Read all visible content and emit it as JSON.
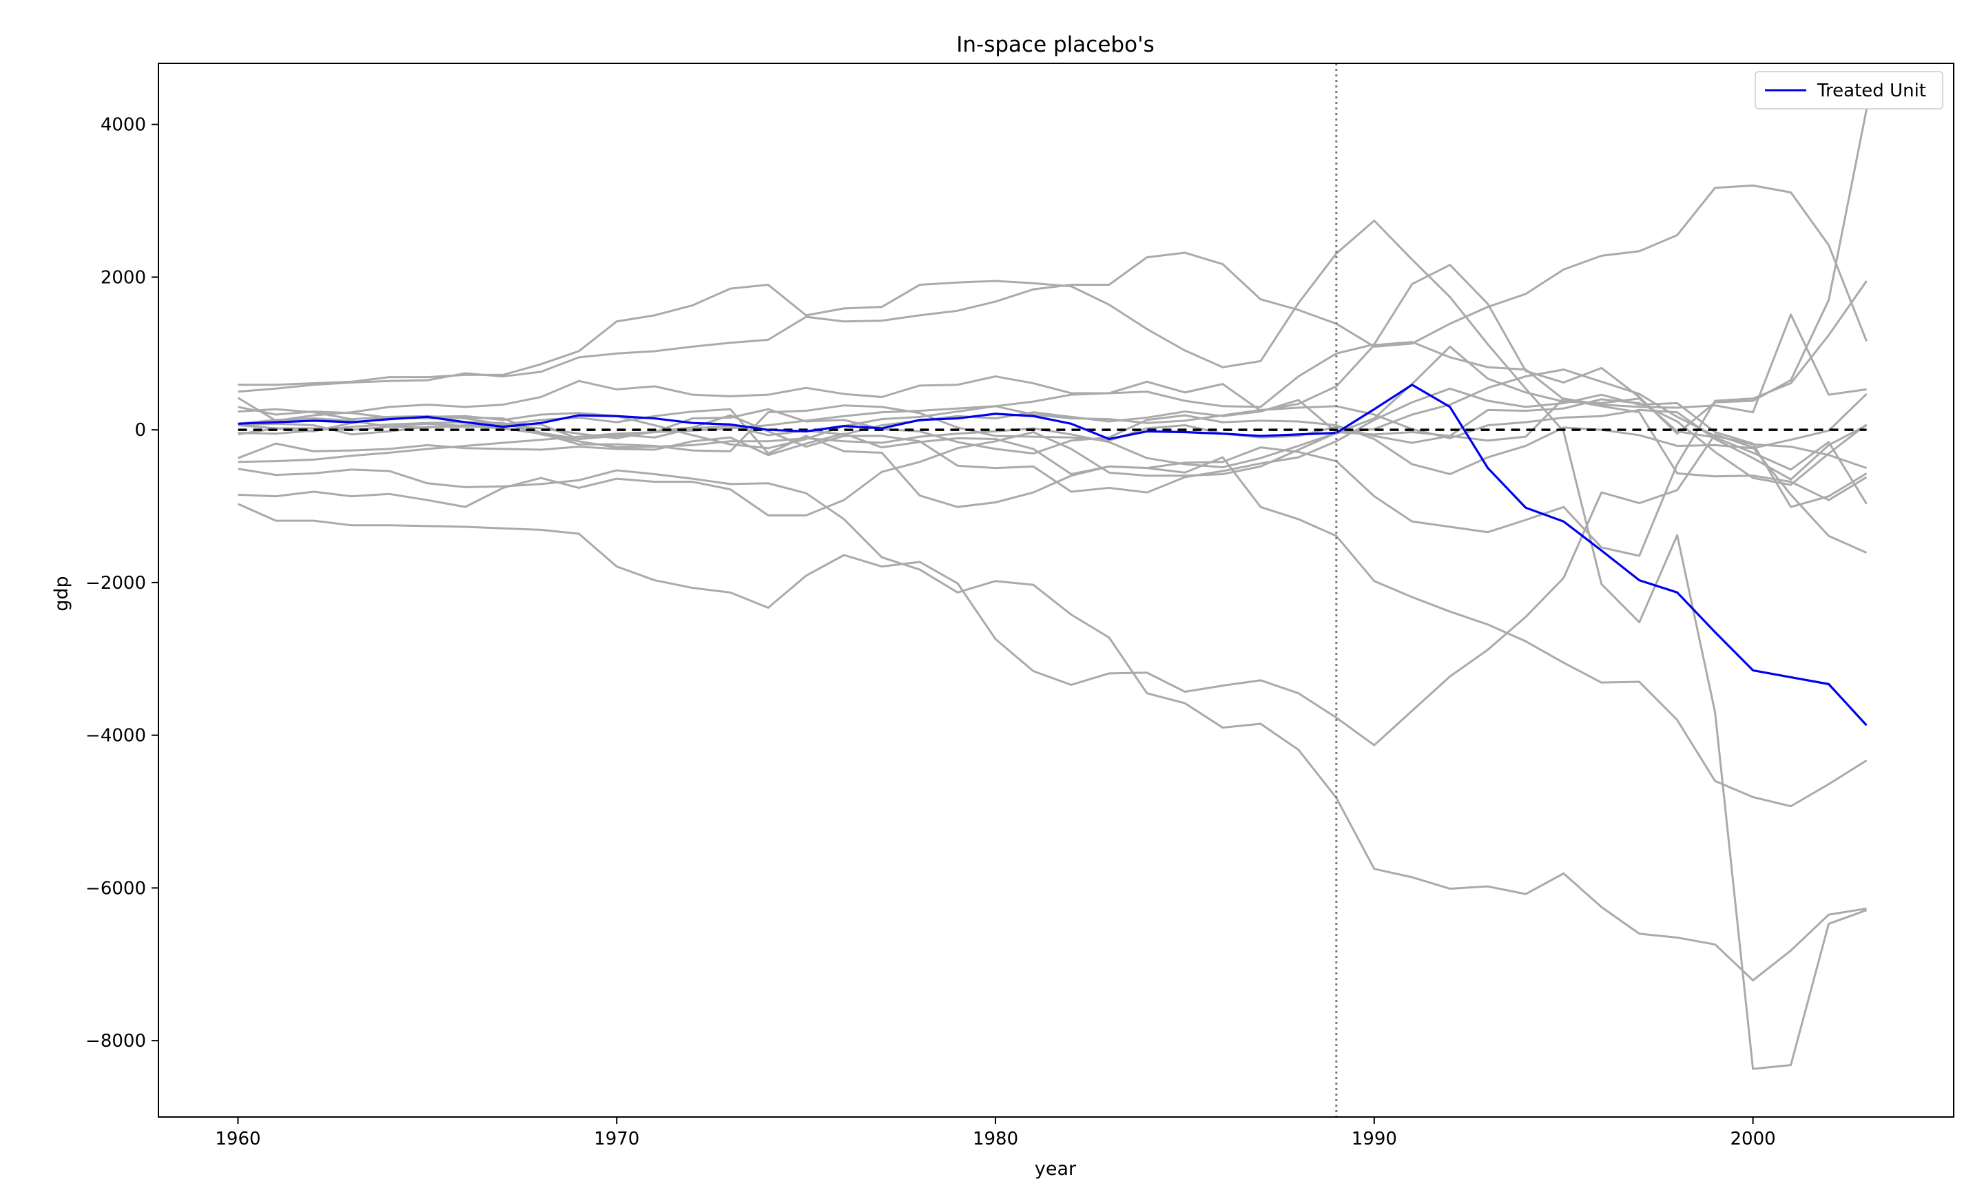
{
  "chart_data": {
    "type": "line",
    "title": "In-space placebo's",
    "xlabel": "year",
    "ylabel": "gdp",
    "xlim": [
      1957.9,
      2005.3
    ],
    "ylim": [
      -9000,
      4800
    ],
    "x_ticks": [
      1960,
      1970,
      1980,
      1990,
      2000
    ],
    "y_ticks": [
      4000,
      2000,
      0,
      -2000,
      -4000,
      -6000,
      -8000
    ],
    "x_tick_labels": [
      "1960",
      "1970",
      "1980",
      "1990",
      "2000"
    ],
    "y_tick_labels": [
      "4000",
      "2000",
      "0",
      "−2000",
      "−4000",
      "−6000",
      "−8000"
    ],
    "grid": false,
    "legend_position": "top-right",
    "treatment_year": 1989,
    "zero_line": 0,
    "colors": {
      "placebo": "#aaaaaa",
      "treated": "#0000ee",
      "zero": "#000000",
      "vline": "#777777"
    },
    "x": [
      1960,
      1961,
      1962,
      1963,
      1964,
      1965,
      1966,
      1967,
      1968,
      1969,
      1970,
      1971,
      1972,
      1973,
      1974,
      1975,
      1976,
      1977,
      1978,
      1979,
      1980,
      1981,
      1982,
      1983,
      1984,
      1985,
      1986,
      1987,
      1988,
      1989,
      1990,
      1991,
      1992,
      1993,
      1994,
      1995,
      1996,
      1997,
      1998,
      1999,
      2000,
      2001,
      2002,
      2003
    ],
    "series": [
      {
        "name": "Treated Unit",
        "role": "treated",
        "values": [
          80,
          100,
          120,
          100,
          140,
          170,
          100,
          40,
          90,
          190,
          180,
          150,
          90,
          70,
          0,
          -20,
          50,
          20,
          130,
          150,
          210,
          180,
          80,
          -120,
          -20,
          -30,
          -50,
          -80,
          -60,
          -40,
          270,
          590,
          300,
          -500,
          -1020,
          -1200,
          -1580,
          -1970,
          -2130,
          -2650,
          -3150,
          -3240,
          -3330,
          -3870
        ]
      },
      {
        "role": "placebo",
        "values": [
          590,
          590,
          610,
          630,
          690,
          690,
          720,
          720,
          860,
          1030,
          1420,
          1500,
          1630,
          1850,
          1900,
          1500,
          1590,
          1610,
          1900,
          1930,
          1950,
          1920,
          1880,
          1640,
          1320,
          1040,
          820,
          900,
          1660,
          2310,
          2740,
          2230,
          1740,
          1120,
          540,
          -20,
          -2020,
          -2520,
          -1380,
          -3700,
          -8370,
          -8320,
          -6470,
          -6290
        ]
      },
      {
        "role": "placebo",
        "values": [
          500,
          540,
          590,
          620,
          640,
          650,
          740,
          700,
          760,
          950,
          1000,
          1030,
          1090,
          1140,
          1180,
          1480,
          1420,
          1430,
          1500,
          1560,
          1680,
          1840,
          1900,
          1900,
          2260,
          2320,
          2170,
          1710,
          1570,
          1390,
          1090,
          1130,
          1390,
          1610,
          1780,
          2100,
          2280,
          2340,
          2550,
          3170,
          3200,
          3110,
          2420,
          1160
        ]
      },
      {
        "role": "placebo",
        "values": [
          420,
          120,
          190,
          230,
          300,
          330,
          300,
          330,
          430,
          640,
          530,
          570,
          460,
          440,
          460,
          550,
          470,
          430,
          580,
          590,
          700,
          610,
          480,
          480,
          630,
          490,
          600,
          250,
          340,
          570,
          1110,
          1150,
          950,
          820,
          790,
          400,
          310,
          230,
          -570,
          -610,
          -600,
          -680,
          -920,
          -620
        ]
      },
      {
        "role": "placebo",
        "values": [
          -370,
          -180,
          -280,
          -270,
          -250,
          -200,
          -240,
          -250,
          -260,
          -220,
          -250,
          -260,
          -150,
          -100,
          -330,
          -180,
          -50,
          -230,
          -160,
          -110,
          -120,
          -250,
          -580,
          -480,
          -500,
          -560,
          -360,
          -1010,
          -1170,
          -1390,
          -1980,
          -2190,
          -2380,
          -2550,
          -2770,
          -3050,
          -3310,
          -3300,
          -3800,
          -4600,
          -4810,
          -4930,
          -4640,
          -4330
        ]
      },
      {
        "role": "placebo",
        "values": [
          -850,
          -870,
          -810,
          -870,
          -840,
          -920,
          -1010,
          -760,
          -630,
          -760,
          -640,
          -680,
          -680,
          -780,
          -1120,
          -1120,
          -920,
          -550,
          -420,
          -240,
          -150,
          -30,
          -250,
          -560,
          -600,
          -600,
          -580,
          -480,
          -260,
          -40,
          150,
          600,
          1090,
          670,
          490,
          370,
          350,
          410,
          -20,
          -100,
          -300,
          -520,
          -160,
          -970
        ]
      },
      {
        "role": "placebo",
        "values": [
          -970,
          -1190,
          -1190,
          -1250,
          -1250,
          -1260,
          -1270,
          -1290,
          -1310,
          -1360,
          -1790,
          -1970,
          -2070,
          -2130,
          -2330,
          -1910,
          -1640,
          -1790,
          -1730,
          -2010,
          -2740,
          -3160,
          -3340,
          -3190,
          -3180,
          -3430,
          -3350,
          -3280,
          -3450,
          -3770,
          -4130,
          -3680,
          -3230,
          -2880,
          -2450,
          -1940,
          -820,
          -960,
          -790,
          -60,
          -230,
          -850,
          -1390,
          -1610
        ]
      },
      {
        "role": "placebo",
        "values": [
          -510,
          -590,
          -570,
          -520,
          -540,
          -700,
          -750,
          -740,
          -710,
          -660,
          -530,
          -580,
          -640,
          -710,
          -700,
          -830,
          -1170,
          -1670,
          -1830,
          -2130,
          -1980,
          -2030,
          -2420,
          -2720,
          -3450,
          -3580,
          -3900,
          -3850,
          -4190,
          -4820,
          -5750,
          -5860,
          -6010,
          -5980,
          -6080,
          -5810,
          -6250,
          -6600,
          -6650,
          -6740,
          -7210,
          -6820,
          -6350,
          -6270
        ]
      },
      {
        "role": "placebo",
        "values": [
          240,
          270,
          230,
          140,
          170,
          180,
          150,
          70,
          130,
          160,
          100,
          180,
          240,
          270,
          -310,
          -80,
          -280,
          -300,
          -860,
          -1010,
          -950,
          -820,
          -600,
          -480,
          -500,
          -430,
          -420,
          -230,
          -290,
          -410,
          -870,
          -1200,
          -1270,
          -1340,
          -1180,
          -1010,
          -1540,
          -1650,
          -450,
          380,
          410,
          610,
          1240,
          1950
        ]
      },
      {
        "role": "placebo",
        "values": [
          60,
          20,
          -20,
          90,
          150,
          170,
          180,
          130,
          200,
          220,
          180,
          60,
          -70,
          -190,
          -240,
          -120,
          50,
          140,
          170,
          240,
          310,
          370,
          460,
          480,
          500,
          380,
          310,
          300,
          700,
          1000,
          1120,
          1910,
          2160,
          1650,
          770,
          620,
          810,
          430,
          -50,
          360,
          380,
          650,
          1700,
          4200
        ]
      },
      {
        "role": "placebo",
        "values": [
          60,
          80,
          60,
          -60,
          -20,
          40,
          40,
          60,
          20,
          -50,
          -110,
          -20,
          30,
          190,
          -20,
          -220,
          -80,
          -80,
          -150,
          -470,
          -500,
          -480,
          -810,
          -760,
          -820,
          -620,
          -540,
          -440,
          -360,
          -150,
          130,
          360,
          540,
          380,
          300,
          350,
          460,
          330,
          350,
          -30,
          -180,
          -1010,
          -870,
          -570
        ]
      },
      {
        "role": "placebo",
        "values": [
          -60,
          20,
          20,
          0,
          40,
          80,
          50,
          20,
          -50,
          -190,
          -190,
          -210,
          -270,
          -280,
          230,
          250,
          320,
          300,
          220,
          30,
          -80,
          -90,
          -100,
          -140,
          20,
          60,
          -50,
          -100,
          -80,
          40,
          -80,
          -170,
          -80,
          -140,
          -90,
          410,
          330,
          300,
          290,
          320,
          230,
          1510,
          460,
          530
        ]
      },
      {
        "role": "placebo",
        "values": [
          80,
          130,
          150,
          120,
          40,
          30,
          60,
          80,
          70,
          -120,
          -80,
          -30,
          150,
          160,
          270,
          110,
          130,
          10,
          -20,
          -160,
          -250,
          -310,
          -140,
          -100,
          130,
          190,
          100,
          120,
          110,
          60,
          -120,
          -450,
          -580,
          -360,
          -210,
          30,
          0,
          -70,
          -210,
          -200,
          -240,
          -130,
          -10,
          470
        ]
      },
      {
        "role": "placebo",
        "values": [
          300,
          200,
          240,
          220,
          160,
          150,
          160,
          150,
          -40,
          -120,
          -60,
          -100,
          20,
          50,
          -70,
          -10,
          -60,
          60,
          120,
          180,
          150,
          230,
          170,
          110,
          160,
          240,
          180,
          240,
          390,
          -30,
          -60,
          -30,
          -80,
          260,
          250,
          280,
          400,
          350,
          110,
          -290,
          -630,
          -720,
          -310,
          70
        ]
      },
      {
        "role": "placebo",
        "values": [
          -40,
          -50,
          -10,
          40,
          70,
          90,
          100,
          90,
          -60,
          -150,
          -230,
          -220,
          -200,
          -150,
          -150,
          -110,
          -150,
          -170,
          -90,
          -50,
          -20,
          20,
          -60,
          -160,
          -370,
          -450,
          -490,
          -370,
          -210,
          -40,
          10,
          200,
          330,
          550,
          700,
          790,
          630,
          470,
          170,
          -80,
          -190,
          -220,
          -330,
          -500
        ]
      },
      {
        "role": "placebo",
        "values": [
          -420,
          -410,
          -390,
          -340,
          -300,
          -250,
          -210,
          -170,
          -130,
          -90,
          -50,
          -30,
          -10,
          20,
          60,
          120,
          180,
          230,
          250,
          280,
          310,
          200,
          150,
          140,
          90,
          120,
          190,
          260,
          290,
          310,
          200,
          10,
          -110,
          60,
          100,
          160,
          180,
          260,
          230,
          -120,
          -370,
          -650,
          -200,
          60
        ]
      }
    ]
  },
  "legend": {
    "treated_label": "Treated Unit"
  }
}
